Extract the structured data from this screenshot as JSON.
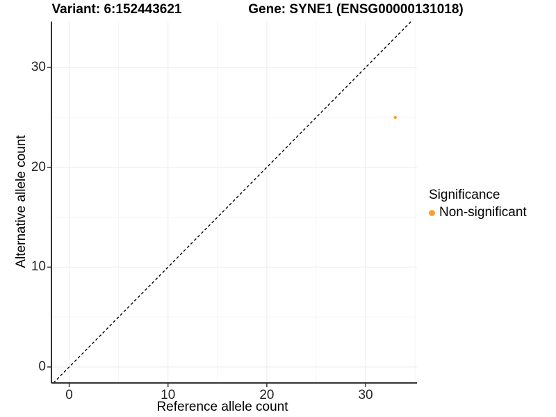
{
  "figure": {
    "background": "#ffffff"
  },
  "chart_data": {
    "type": "scatter",
    "title_left": "Variant: 6:152443621",
    "title_right": "Gene: SYNE1 (ENSG00000131018)",
    "xlabel": "Reference allele count",
    "ylabel": "Alternative allele count",
    "xlim": [
      -1.8,
      35.2
    ],
    "ylim": [
      -1.6,
      34.6
    ],
    "x_ticks": [
      0,
      10,
      20,
      30
    ],
    "y_ticks": [
      0,
      10,
      20,
      30
    ],
    "x_minor_ticks": [
      5,
      15,
      25,
      35
    ],
    "y_minor_ticks": [
      5,
      15,
      25
    ],
    "grid": true,
    "legend_position": "right",
    "series": [
      {
        "name": "Non-significant",
        "color": "#F9A032",
        "points": [
          {
            "x": 33,
            "y": 25
          }
        ]
      }
    ],
    "reference_line": {
      "type": "abline",
      "intercept": 0,
      "slope": 1,
      "style": "dashed",
      "color": "#000000"
    },
    "legend": {
      "title": "Significance",
      "items": [
        {
          "label": "Non-significant",
          "color": "#F9A032"
        }
      ]
    }
  },
  "colors": {
    "axis_line": "#333333",
    "tick_mark": "#333333",
    "grid_major": "#EBEBEB",
    "grid_minor": "#F5F5F5",
    "point": "#F9A032"
  }
}
